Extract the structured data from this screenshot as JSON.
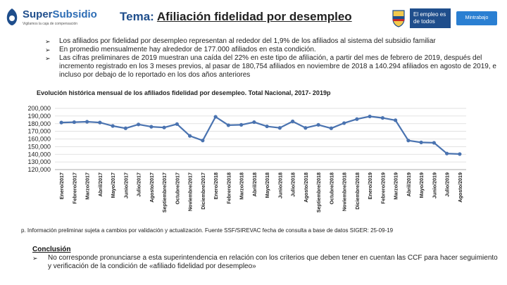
{
  "header": {
    "logo_name_main": "Super",
    "logo_name_accent": "Subsidio",
    "logo_tagline": "Vigilamos la caja de compensación",
    "title_prefix": "Tema:",
    "title_text": "Afiliación fidelidad por desempleo",
    "gov_badge": "El empleo es de todos",
    "ministry": "Mintrabajo"
  },
  "bullets": [
    "Los afiliados por fidelidad por desempleo representan al rededor del 1,9% de los afiliados al sistema del subsidio familiar",
    "En promedio mensualmente hay alrededor de 177.000 afiliados en esta condición.",
    "Las cifras preliminares de 2019 muestran una caída del 22% en este tipo de afiliación, a partir del mes de febrero de 2019, después del incremento registrado en los 3 meses previos, al pasar de 180,754 afiliados en noviembre de 2018 a 140.294 afiliados en agosto de 2019, e incluso por debajo de lo reportado en los dos años anteriores"
  ],
  "footnote": "p. Información preliminar sujeta a cambios por validación y actualización. Fuente SSF/SIREVAC fecha de consulta a base de datos SIGER: 25-09-19",
  "conclusion": {
    "heading": "Conclusión",
    "text": "No corresponde pronunciarse a esta superintendencia en relación con los criterios que deben tener en cuentan las CCF para hacer seguimiento y verificación de la condición de «afiliado fidelidad por desempleo»"
  },
  "colors": {
    "line": "#4a73b0",
    "marker": "#4a73b0",
    "grid": "#d9d9d9",
    "brand": "#1f4e8c"
  },
  "chart_data": {
    "type": "line",
    "title": "Evolución histórica mensual de los afiliados fidelidad por desempleo. Total Nacional, 2017- 2019p",
    "xlabel": "",
    "ylabel": "",
    "ylim": [
      120000,
      200000
    ],
    "yticks": [
      120000,
      130000,
      140000,
      150000,
      160000,
      170000,
      180000,
      190000,
      200000
    ],
    "ytick_labels": [
      "120,000",
      "130,000",
      "140,000",
      "150,000",
      "160,000",
      "170,000",
      "180,000",
      "190,000",
      "200,000"
    ],
    "grid": true,
    "categories": [
      "Enero/2017",
      "Febrero/2017",
      "Marzo/2017",
      "Abril/2017",
      "Mayo/2017",
      "Junio/2017",
      "Julio/2017",
      "Agosto/2017",
      "Septiembre/2017",
      "Octubre/2017",
      "Noviembre/2017",
      "Diciembre/2017",
      "Enero/2018",
      "Febrero/2018",
      "Marzo/2018",
      "Abril/2018",
      "Mayo/2018",
      "Junio/2018",
      "Julio/2018",
      "Agosto/2018",
      "Septiembre/2018",
      "Octubre/2018",
      "Noviembre/2018",
      "Diciembre/2018",
      "Enero/2019",
      "Febrero/2019",
      "Marzo/2019",
      "Abril/2019",
      "Mayo/2019",
      "Junio/2019",
      "Julio/2019",
      "Agosto/2019"
    ],
    "series": [
      {
        "name": "Afiliados fidelidad por desempleo",
        "values": [
          181500,
          182000,
          182500,
          181500,
          177000,
          174000,
          179000,
          176000,
          175000,
          179500,
          164000,
          158000,
          189000,
          178000,
          178500,
          182000,
          176500,
          174500,
          183000,
          174500,
          178500,
          174000,
          180754,
          186000,
          189500,
          187500,
          184500,
          158000,
          155500,
          155000,
          141000,
          140294
        ]
      }
    ]
  }
}
